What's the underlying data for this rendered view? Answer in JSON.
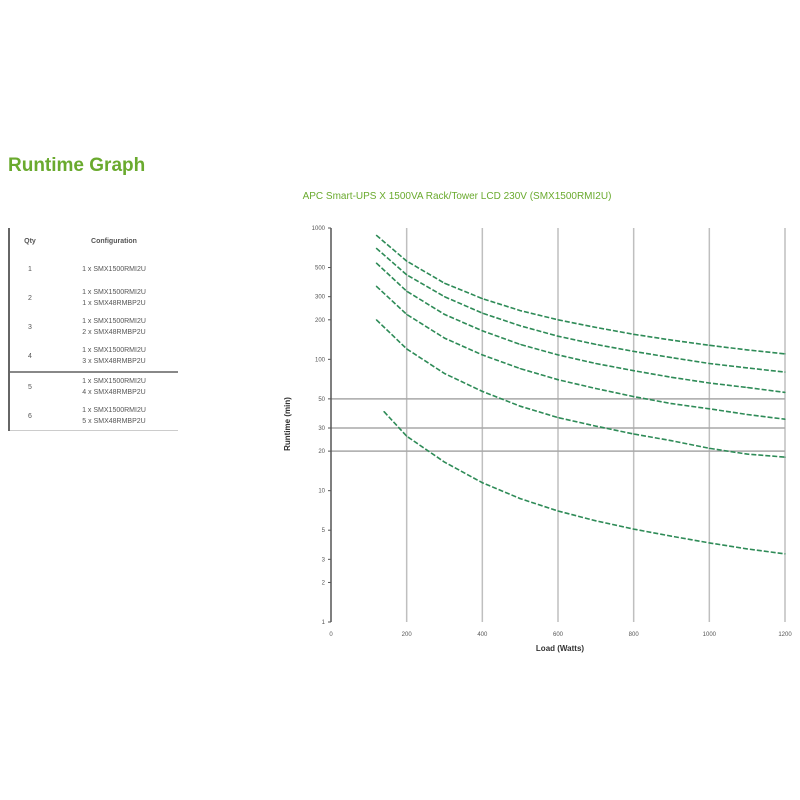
{
  "page": {
    "title": "Runtime Graph"
  },
  "legend": {
    "header": {
      "col_a": "Qty",
      "col_b": "Configuration"
    },
    "rows": [
      {
        "col_a": "1",
        "col_b": [
          "1 x SMX1500RMI2U"
        ]
      },
      {
        "col_a": "2",
        "col_b": [
          "1 x SMX1500RMI2U",
          "1 x SMX48RMBP2U"
        ]
      },
      {
        "col_a": "3",
        "col_b": [
          "1 x SMX1500RMI2U",
          "2 x SMX48RMBP2U"
        ]
      },
      {
        "col_a": "4",
        "col_b": [
          "1 x SMX1500RMI2U",
          "3 x SMX48RMBP2U"
        ]
      },
      {
        "col_a": "5",
        "col_b": [
          "1 x SMX1500RMI2U",
          "4 x SMX48RMBP2U"
        ]
      },
      {
        "col_a": "6",
        "col_b": [
          "1 x SMX1500RMI2U",
          "5 x SMX48RMBP2U"
        ]
      }
    ]
  },
  "chart_data": {
    "type": "line",
    "title": "APC Smart-UPS X 1500VA Rack/Tower LCD 230V (SMX1500RMI2U)",
    "xlabel": "Load (Watts)",
    "ylabel": "Runtime (min)",
    "xlim": [
      0,
      1200
    ],
    "x_ticks": [
      "0",
      "200",
      "400",
      "600",
      "800",
      "1000",
      "1200"
    ],
    "y_scale": "log",
    "ylim": [
      1,
      1000
    ],
    "y_ticks": [
      "1",
      "2",
      "3",
      "5",
      "10",
      "20",
      "30",
      "50",
      "100",
      "200",
      "300",
      "500",
      "1000"
    ],
    "grid": true,
    "series_color": "#2e8b57",
    "grid_color": "#bfbfbf",
    "series": [
      {
        "x": [
          120,
          200,
          300,
          400,
          500,
          600,
          700,
          800,
          900,
          1000,
          1100,
          1200
        ],
        "y": [
          880,
          560,
          380,
          290,
          235,
          200,
          175,
          155,
          140,
          128,
          118,
          110
        ]
      },
      {
        "x": [
          120,
          200,
          300,
          400,
          500,
          600,
          700,
          800,
          900,
          1000,
          1100,
          1200
        ],
        "y": [
          700,
          440,
          300,
          225,
          180,
          150,
          130,
          115,
          103,
          93,
          86,
          80
        ]
      },
      {
        "x": [
          120,
          200,
          300,
          400,
          500,
          600,
          700,
          800,
          900,
          1000,
          1100,
          1200
        ],
        "y": [
          540,
          330,
          220,
          165,
          130,
          108,
          93,
          82,
          73,
          66,
          61,
          56
        ]
      },
      {
        "x": [
          120,
          200,
          300,
          400,
          500,
          600,
          700,
          800,
          900,
          1000,
          1100,
          1200
        ],
        "y": [
          360,
          220,
          145,
          108,
          85,
          70,
          60,
          52,
          46,
          42,
          38,
          35
        ]
      },
      {
        "x": [
          120,
          200,
          300,
          400,
          500,
          600,
          700,
          800,
          900,
          1000,
          1100,
          1200
        ],
        "y": [
          200,
          120,
          78,
          57,
          44,
          36,
          31,
          27,
          24,
          21,
          19,
          18
        ]
      },
      {
        "x": [
          140,
          200,
          300,
          400,
          500,
          600,
          700,
          800,
          900,
          1000,
          1100,
          1200
        ],
        "y": [
          40,
          26,
          16.5,
          11.5,
          8.7,
          7.0,
          5.9,
          5.1,
          4.5,
          4.0,
          3.6,
          3.3
        ]
      }
    ]
  }
}
